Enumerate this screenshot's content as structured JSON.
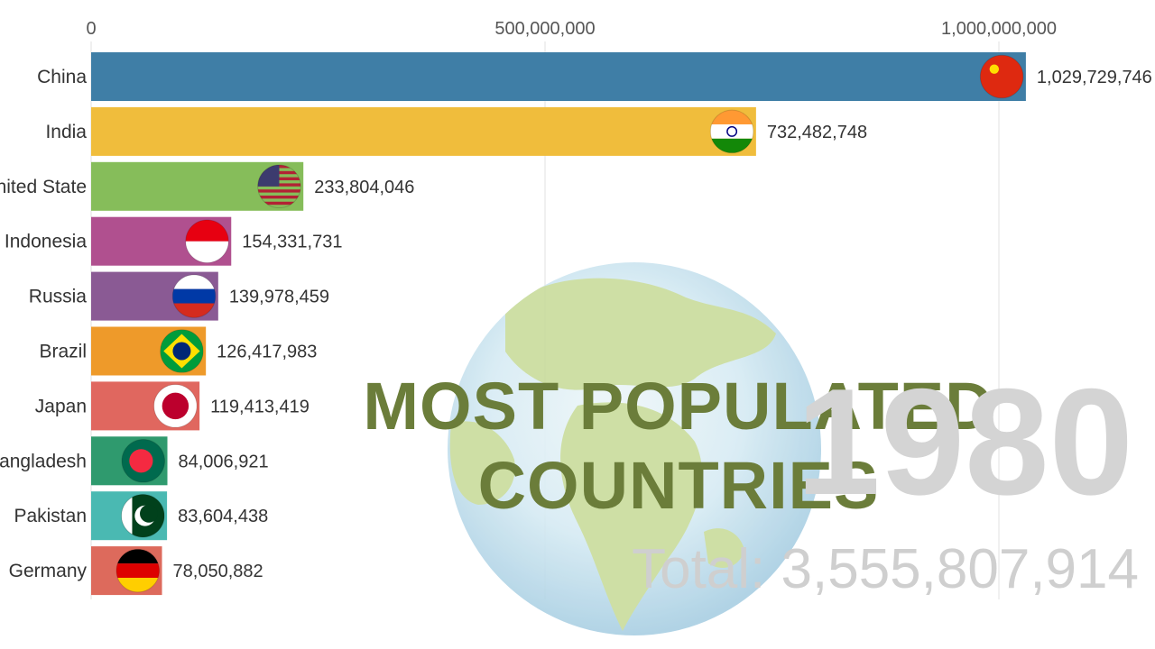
{
  "chart_data": {
    "type": "bar",
    "orientation": "horizontal",
    "title_lines": [
      "MOST POPULATED",
      "COUNTRIES"
    ],
    "year": "1980",
    "total_label": "Total: 3,555,807,914",
    "xlim": [
      0,
      1050000000
    ],
    "grid": true,
    "ticks": [
      {
        "value": 0,
        "label": "0"
      },
      {
        "value": 500000000,
        "label": "500,000,000"
      },
      {
        "value": 1000000000,
        "label": "1,000,000,000"
      }
    ],
    "categories": [
      "China",
      "India",
      "United State",
      "Indonesia",
      "Russia",
      "Brazil",
      "Japan",
      "Bangladesh",
      "Pakistan",
      "Germany"
    ],
    "values": [
      1029729746,
      732482748,
      233804046,
      154331731,
      139978459,
      126417983,
      119413419,
      84006921,
      83604438,
      78050882
    ],
    "value_labels": [
      "1,029,729,746",
      "732,482,748",
      "233,804,046",
      "154,331,731",
      "139,978,459",
      "126,417,983",
      "119,413,419",
      "84,006,921",
      "83,604,438",
      "78,050,882"
    ],
    "colors": [
      "#3f7ea6",
      "#f0bd3c",
      "#86bd5a",
      "#b0508f",
      "#8a5a94",
      "#ee9a2a",
      "#e0675f",
      "#2f9a6e",
      "#4ab9b2",
      "#dd6a5c"
    ],
    "flag_icons": [
      "china-flag-icon",
      "india-flag-icon",
      "usa-flag-icon",
      "indonesia-flag-icon",
      "russia-flag-icon",
      "brazil-flag-icon",
      "japan-flag-icon",
      "bangladesh-flag-icon",
      "pakistan-flag-icon",
      "germany-flag-icon"
    ]
  }
}
